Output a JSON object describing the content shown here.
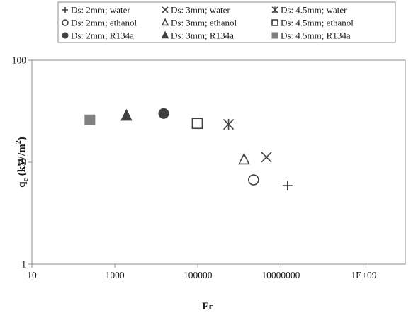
{
  "chart_data": {
    "type": "scatter",
    "title": "",
    "xlabel": "Fr",
    "ylabel_main": "q",
    "ylabel_sub": "c",
    "ylabel_unit_pre": " (kW/m",
    "ylabel_unit_sup": "2",
    "ylabel_unit_post": ")",
    "x_scale": "log",
    "y_scale": "log",
    "xlim": [
      10,
      10000000000
    ],
    "ylim": [
      1,
      100
    ],
    "x_ticks": [
      10,
      1000,
      100000,
      10000000,
      1000000000
    ],
    "x_tick_labels": [
      "10",
      "1000",
      "100000",
      "10000000",
      "1E+09"
    ],
    "y_ticks": [
      1,
      10,
      100
    ],
    "y_tick_labels": [
      "1",
      "10",
      "100"
    ],
    "grid": false,
    "legend_position": "top",
    "series": [
      {
        "name": "Ds: 2mm; water",
        "marker": "plus",
        "color": "#404040",
        "x": [
          14500000
        ],
        "y": [
          5.9
        ]
      },
      {
        "name": "Ds: 2mm; ethanol",
        "marker": "circle-open",
        "color": "#404040",
        "x": [
          2200000
        ],
        "y": [
          6.7
        ]
      },
      {
        "name": "Ds: 2mm; R134a",
        "marker": "circle-filled",
        "color": "#404040",
        "x": [
          15000
        ],
        "y": [
          30
        ]
      },
      {
        "name": "Ds: 3mm; water",
        "marker": "x",
        "color": "#404040",
        "x": [
          4500000
        ],
        "y": [
          11.2
        ]
      },
      {
        "name": "Ds: 3mm; ethanol",
        "marker": "triangle-open",
        "color": "#404040",
        "x": [
          1300000
        ],
        "y": [
          10.6
        ]
      },
      {
        "name": "Ds: 3mm; R134a",
        "marker": "triangle-filled",
        "color": "#404040",
        "x": [
          1900
        ],
        "y": [
          28.5
        ]
      },
      {
        "name": "Ds: 4.5mm; water",
        "marker": "asterisk",
        "color": "#404040",
        "x": [
          550000
        ],
        "y": [
          23.5
        ]
      },
      {
        "name": "Ds: 4.5mm; ethanol",
        "marker": "square-open",
        "color": "#404040",
        "x": [
          97000
        ],
        "y": [
          24
        ]
      },
      {
        "name": "Ds: 4.5mm; R134a",
        "marker": "square-filled",
        "color": "#808080",
        "x": [
          250
        ],
        "y": [
          26
        ]
      }
    ]
  }
}
